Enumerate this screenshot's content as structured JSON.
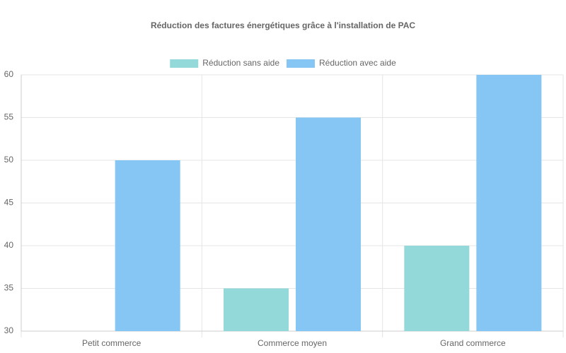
{
  "chart_data": {
    "type": "bar",
    "title": "Réduction des factures énergétiques grâce à l'installation de PAC",
    "categories": [
      "Petit commerce",
      "Commerce moyen",
      "Grand commerce"
    ],
    "series": [
      {
        "name": "Réduction sans aide",
        "color": "#93d9d9",
        "values": [
          30,
          35,
          40
        ]
      },
      {
        "name": "Réduction avec aide",
        "color": "#86c6f4",
        "values": [
          50,
          55,
          60
        ]
      }
    ],
    "ylim": [
      30,
      60
    ],
    "yticks": [
      30,
      35,
      40,
      45,
      50,
      55,
      60
    ],
    "grid": true,
    "legend": "top"
  }
}
